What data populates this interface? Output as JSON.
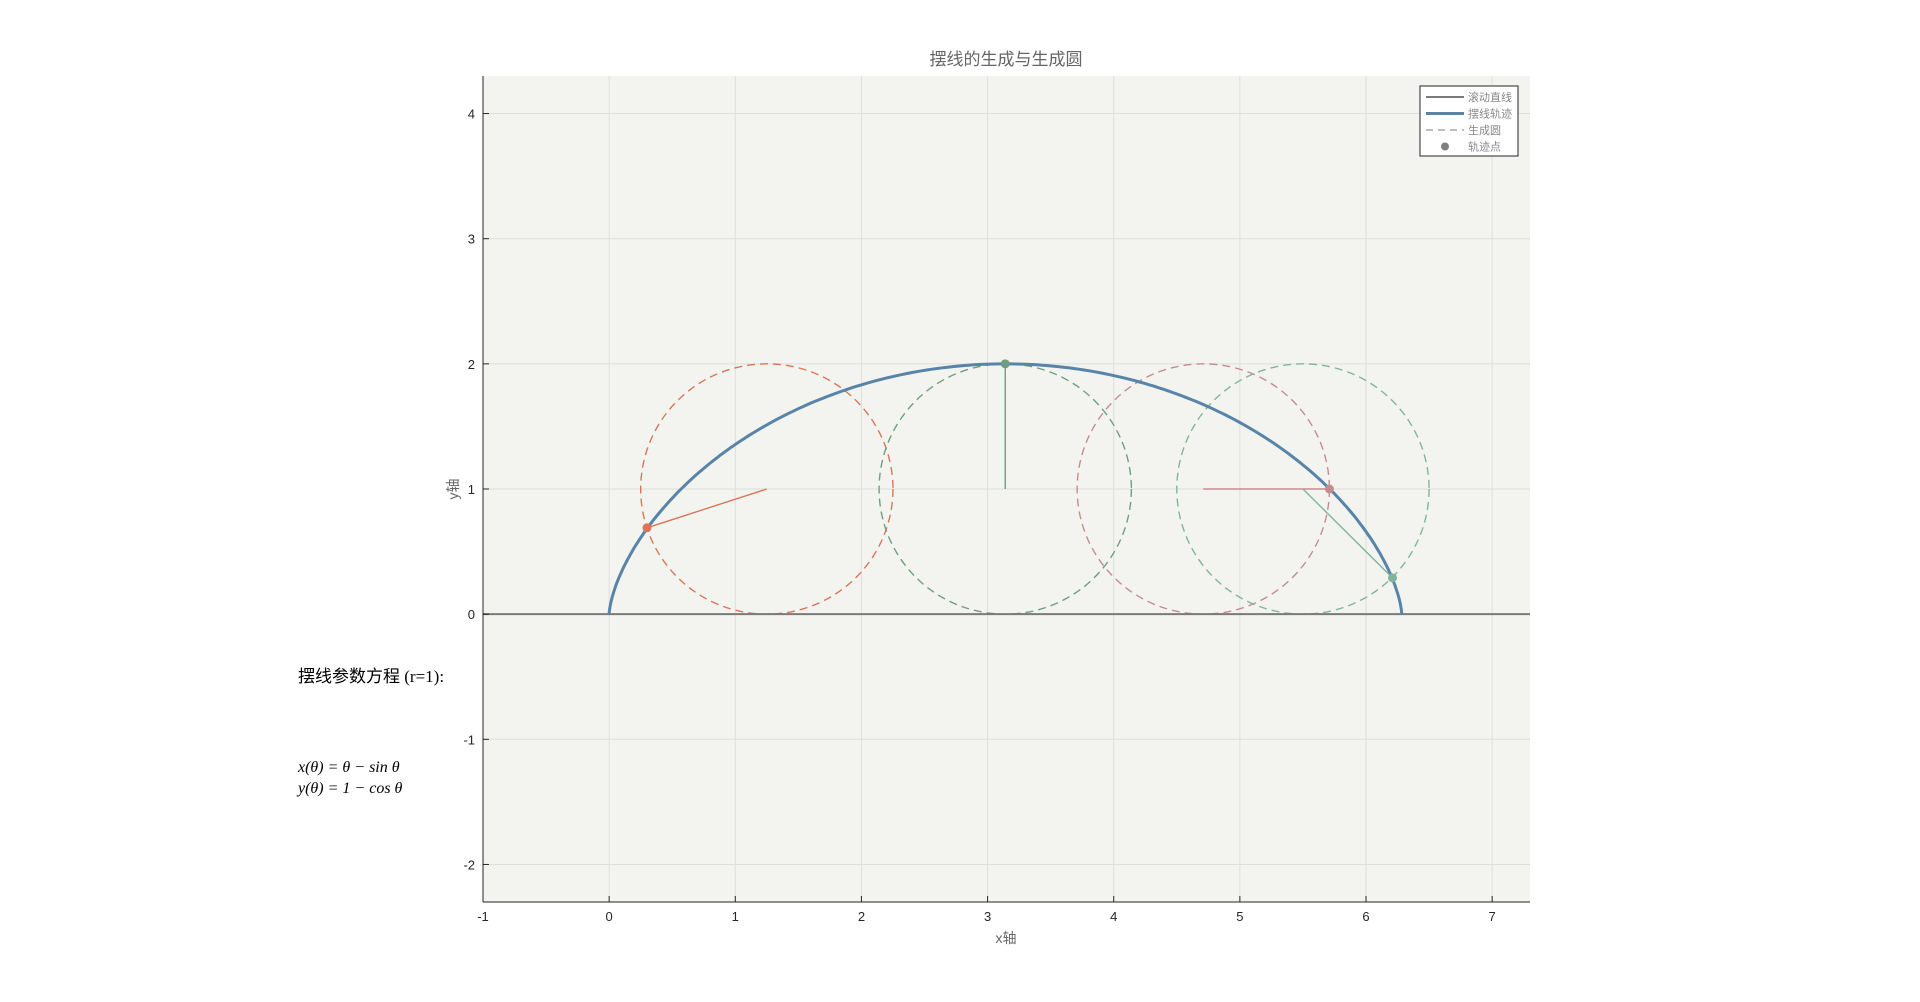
{
  "chart_data": {
    "type": "line",
    "title": "摆线的生成与生成圆",
    "xlabel": "x轴",
    "ylabel": "y轴",
    "xlim": [
      -1,
      7.3
    ],
    "ylim": [
      -2.3,
      4.3
    ],
    "xticks": [
      "-1",
      "0",
      "1",
      "2",
      "3",
      "4",
      "5",
      "6",
      "7"
    ],
    "yticks": [
      "-2",
      "-1",
      "0",
      "1",
      "2",
      "3",
      "4"
    ],
    "grid": true,
    "legend_position": "top-right",
    "legend": [
      {
        "label": "滚动直线",
        "style": "solid-gray"
      },
      {
        "label": "摆线轨迹",
        "style": "solid-blue-thick"
      },
      {
        "label": "生成圆",
        "style": "dashed"
      },
      {
        "label": "轨迹点",
        "style": "marker"
      }
    ],
    "rolling_line": {
      "y": 0,
      "color": "#7a7a7a"
    },
    "cycloid": {
      "r": 1,
      "theta_range": [
        0,
        6.2832
      ],
      "color": "#5784a8"
    },
    "circles": [
      {
        "center": [
          1.25,
          1
        ],
        "radius": 1,
        "point": [
          0.3,
          0.69
        ],
        "color": "#d9765a"
      },
      {
        "center": [
          3.14,
          1
        ],
        "radius": 1,
        "point": [
          3.14,
          2.0
        ],
        "color": "#6e9e82"
      },
      {
        "center": [
          4.71,
          1
        ],
        "radius": 1,
        "point": [
          5.71,
          1.0
        ],
        "color": "#c48c91"
      },
      {
        "center": [
          5.5,
          1
        ],
        "radius": 1,
        "point": [
          6.21,
          0.29
        ],
        "color": "#80b59a"
      }
    ]
  },
  "annotation": {
    "heading": "摆线参数方程 (r=1):",
    "eq1": "x(θ) = θ − sin θ",
    "eq2": "y(θ) = 1 − cos θ"
  }
}
